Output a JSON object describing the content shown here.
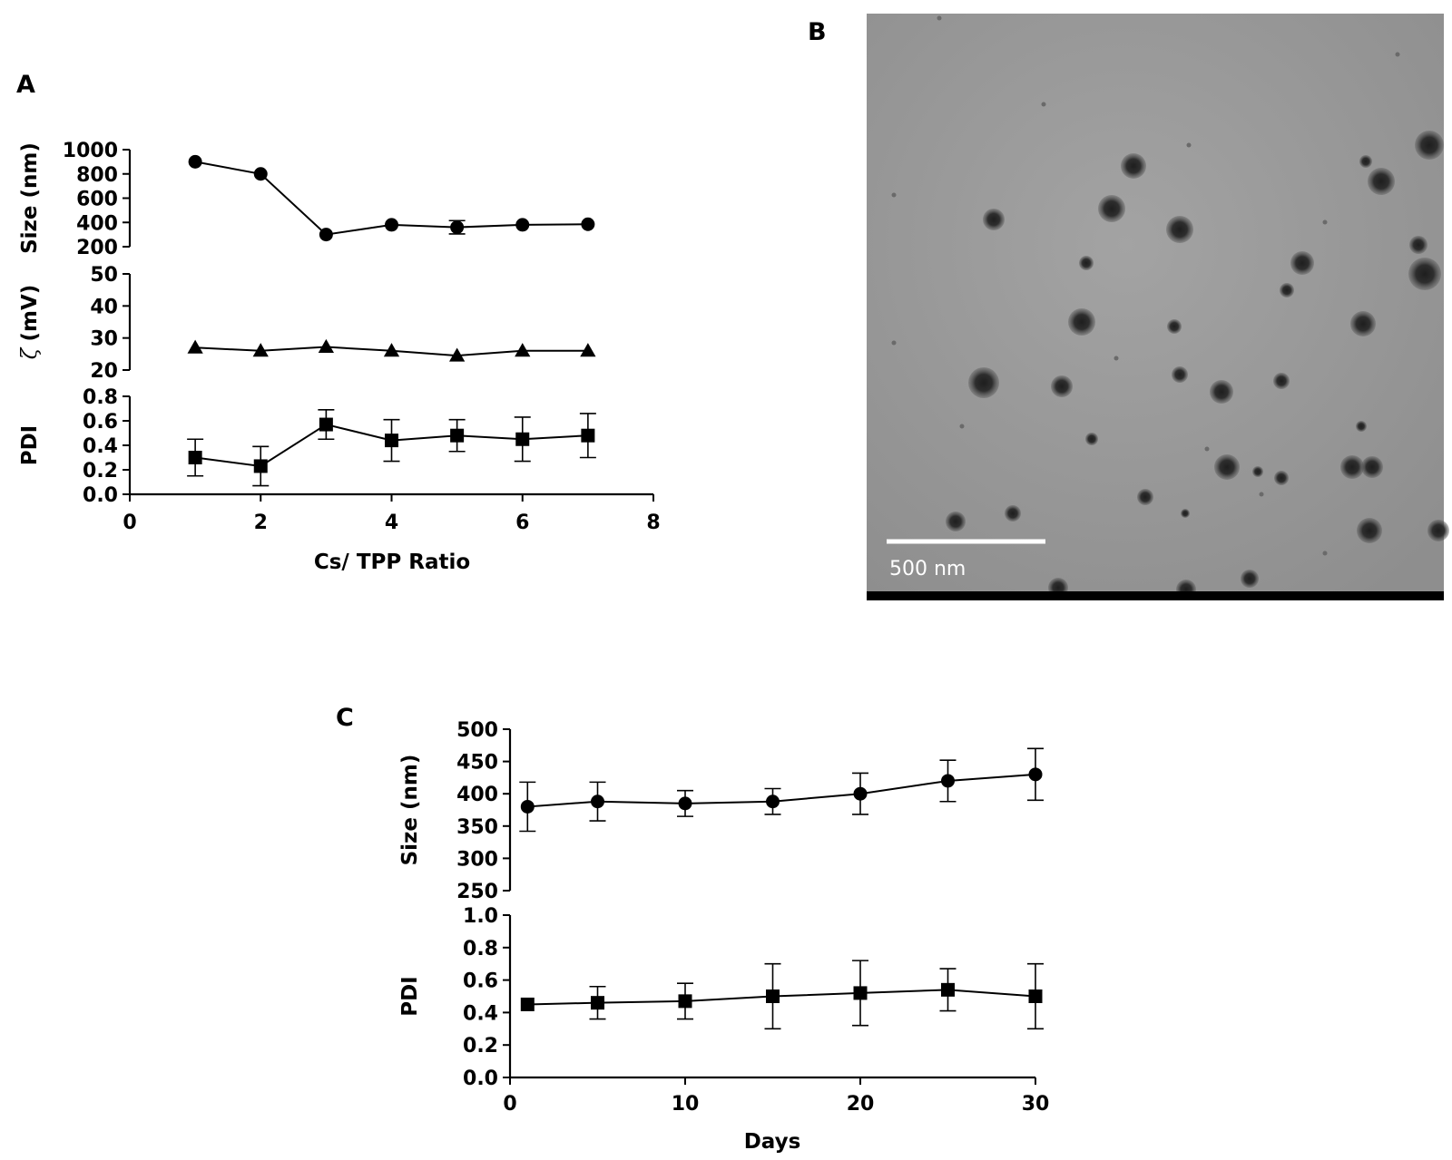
{
  "figure": {
    "panel_labels": {
      "a": "A",
      "b": "B",
      "c": "C"
    },
    "micrograph": {
      "scale_bar_label": "500 nm",
      "background_color": "#9a9a9a",
      "particle_color": "#2c2c2c"
    }
  },
  "chart_data": [
    {
      "panel": "A",
      "type": "line",
      "xlabel": "Cs/ TPP Ratio",
      "xlim": [
        0,
        8
      ],
      "xticks": [
        0,
        2,
        4,
        6,
        8
      ],
      "x": [
        1,
        2,
        3,
        4,
        5,
        6,
        7
      ],
      "subplots": [
        {
          "ylabel": "Size (nm)",
          "ylim": [
            200,
            1000
          ],
          "yticks": [
            200,
            400,
            600,
            800,
            1000
          ],
          "marker": "circle",
          "values": [
            900,
            800,
            300,
            380,
            360,
            380,
            385
          ],
          "errors": [
            0,
            0,
            0,
            0,
            55,
            0,
            0
          ]
        },
        {
          "ylabel_symbol": "ζ",
          "ylabel": "(mV)",
          "ylim": [
            20,
            50
          ],
          "yticks": [
            20,
            30,
            40,
            50
          ],
          "marker": "triangle",
          "values": [
            27,
            26,
            27.2,
            26,
            24.5,
            26,
            26
          ],
          "errors": [
            0,
            0,
            0,
            0,
            0,
            0,
            0
          ]
        },
        {
          "ylabel": "PDI",
          "ylim": [
            0.0,
            0.8
          ],
          "yticks": [
            0.0,
            0.2,
            0.4,
            0.6,
            0.8
          ],
          "yticklabels": [
            "0.0",
            "0.2",
            "0.4",
            "0.6",
            "0.8"
          ],
          "marker": "square",
          "values": [
            0.3,
            0.23,
            0.57,
            0.44,
            0.48,
            0.45,
            0.48
          ],
          "errors": [
            0.15,
            0.16,
            0.12,
            0.17,
            0.13,
            0.18,
            0.18
          ]
        }
      ]
    },
    {
      "panel": "C",
      "type": "line",
      "xlabel": "Days",
      "xlim": [
        0,
        30
      ],
      "xticks": [
        0,
        10,
        20,
        30
      ],
      "x": [
        1,
        5,
        10,
        15,
        20,
        25,
        30
      ],
      "subplots": [
        {
          "ylabel": "Size (nm)",
          "ylim": [
            250,
            500
          ],
          "yticks": [
            250,
            300,
            350,
            400,
            450,
            500
          ],
          "marker": "circle",
          "values": [
            380,
            388,
            385,
            388,
            400,
            420,
            430
          ],
          "errors": [
            38,
            30,
            20,
            20,
            32,
            32,
            40
          ]
        },
        {
          "ylabel": "PDI",
          "ylim": [
            0.0,
            1.0
          ],
          "yticks": [
            0.0,
            0.2,
            0.4,
            0.6,
            0.8,
            1.0
          ],
          "yticklabels": [
            "0.0",
            "0.2",
            "0.4",
            "0.6",
            "0.8",
            "1.0"
          ],
          "marker": "square",
          "values": [
            0.45,
            0.46,
            0.47,
            0.5,
            0.52,
            0.54,
            0.5
          ],
          "errors": [
            0,
            0.1,
            0.11,
            0.2,
            0.2,
            0.13,
            0.2
          ]
        }
      ]
    }
  ]
}
